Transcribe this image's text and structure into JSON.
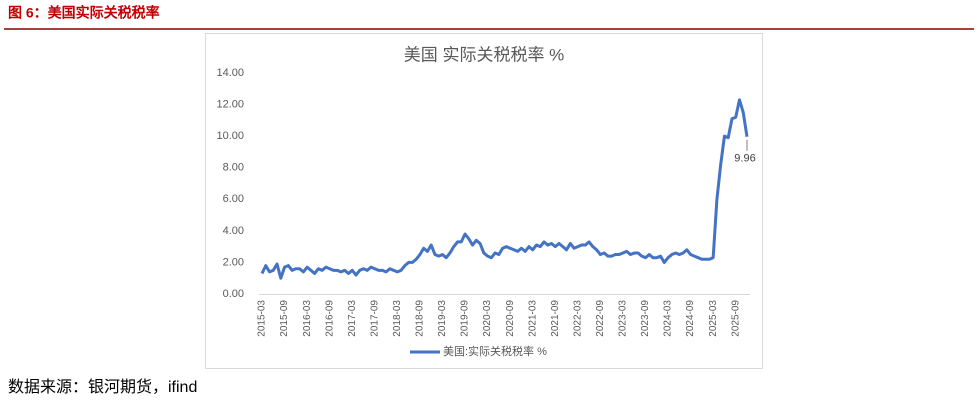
{
  "header": {
    "title": "图 6：美国实际关税税率"
  },
  "chart_data": {
    "type": "line",
    "title": "美国 实际关税税率 %",
    "categories": [
      "2015-03",
      null,
      null,
      null,
      null,
      null,
      "2015-09",
      null,
      null,
      null,
      null,
      null,
      "2016-03",
      null,
      null,
      null,
      null,
      null,
      "2016-09",
      null,
      null,
      null,
      null,
      null,
      "2017-03",
      null,
      null,
      null,
      null,
      null,
      "2017-09",
      null,
      null,
      null,
      null,
      null,
      "2018-03",
      null,
      null,
      null,
      null,
      null,
      "2018-09",
      null,
      null,
      null,
      null,
      null,
      "2019-03",
      null,
      null,
      null,
      null,
      null,
      "2019-09",
      null,
      null,
      null,
      null,
      null,
      "2020-03",
      null,
      null,
      null,
      null,
      null,
      "2020-09",
      null,
      null,
      null,
      null,
      null,
      "2021-03",
      null,
      null,
      null,
      null,
      null,
      "2021-09",
      null,
      null,
      null,
      null,
      null,
      "2022-03",
      null,
      null,
      null,
      null,
      null,
      "2022-09",
      null,
      null,
      null,
      null,
      null,
      "2023-03",
      null,
      null,
      null,
      null,
      null,
      "2023-09",
      null,
      null,
      null,
      null,
      null,
      "2024-03",
      null,
      null,
      null,
      null,
      null,
      "2024-09",
      null,
      null,
      null,
      null,
      null,
      "2025-03",
      null,
      null,
      null,
      null,
      null,
      "2025-09",
      null,
      null,
      null
    ],
    "series": [
      {
        "name": "美国:实际关税税率 %",
        "color": "#4472c4",
        "values": [
          1.3,
          1.8,
          1.4,
          1.5,
          1.9,
          1.0,
          1.7,
          1.8,
          1.5,
          1.6,
          1.6,
          1.4,
          1.7,
          1.5,
          1.3,
          1.6,
          1.5,
          1.7,
          1.6,
          1.5,
          1.5,
          1.4,
          1.5,
          1.3,
          1.5,
          1.2,
          1.5,
          1.6,
          1.5,
          1.7,
          1.6,
          1.5,
          1.5,
          1.4,
          1.6,
          1.5,
          1.4,
          1.5,
          1.8,
          2.0,
          2.0,
          2.2,
          2.5,
          2.9,
          2.7,
          3.1,
          2.5,
          2.4,
          2.5,
          2.3,
          2.6,
          3.0,
          3.3,
          3.3,
          3.8,
          3.5,
          3.1,
          3.4,
          3.2,
          2.6,
          2.4,
          2.3,
          2.6,
          2.5,
          2.9,
          3.0,
          2.9,
          2.8,
          2.7,
          2.9,
          2.7,
          3.0,
          2.8,
          3.1,
          3.0,
          3.3,
          3.1,
          3.2,
          3.0,
          3.2,
          3.0,
          2.8,
          3.2,
          2.9,
          3.0,
          3.1,
          3.1,
          3.3,
          3.0,
          2.8,
          2.5,
          2.6,
          2.4,
          2.4,
          2.5,
          2.5,
          2.6,
          2.7,
          2.5,
          2.6,
          2.6,
          2.4,
          2.3,
          2.5,
          2.3,
          2.3,
          2.4,
          2.0,
          2.3,
          2.5,
          2.6,
          2.5,
          2.6,
          2.8,
          2.5,
          2.4,
          2.3,
          2.2,
          2.2,
          2.2,
          2.3,
          6.0,
          8.2,
          10.0,
          9.9,
          11.1,
          11.2,
          12.3,
          11.5,
          9.96
        ]
      }
    ],
    "ylim": [
      0,
      14
    ],
    "yticks": [
      {
        "value": 0,
        "label": "0.00"
      },
      {
        "value": 2,
        "label": "2.00"
      },
      {
        "value": 4,
        "label": "4.00"
      },
      {
        "value": 6,
        "label": "6.00"
      },
      {
        "value": 8,
        "label": "8.00"
      },
      {
        "value": 10,
        "label": "10.00"
      },
      {
        "value": 12,
        "label": "12.00"
      },
      {
        "value": 14,
        "label": "14.00"
      }
    ],
    "grid": false,
    "legend": "bottom"
  },
  "source": "数据来源：银河期货，ifind"
}
